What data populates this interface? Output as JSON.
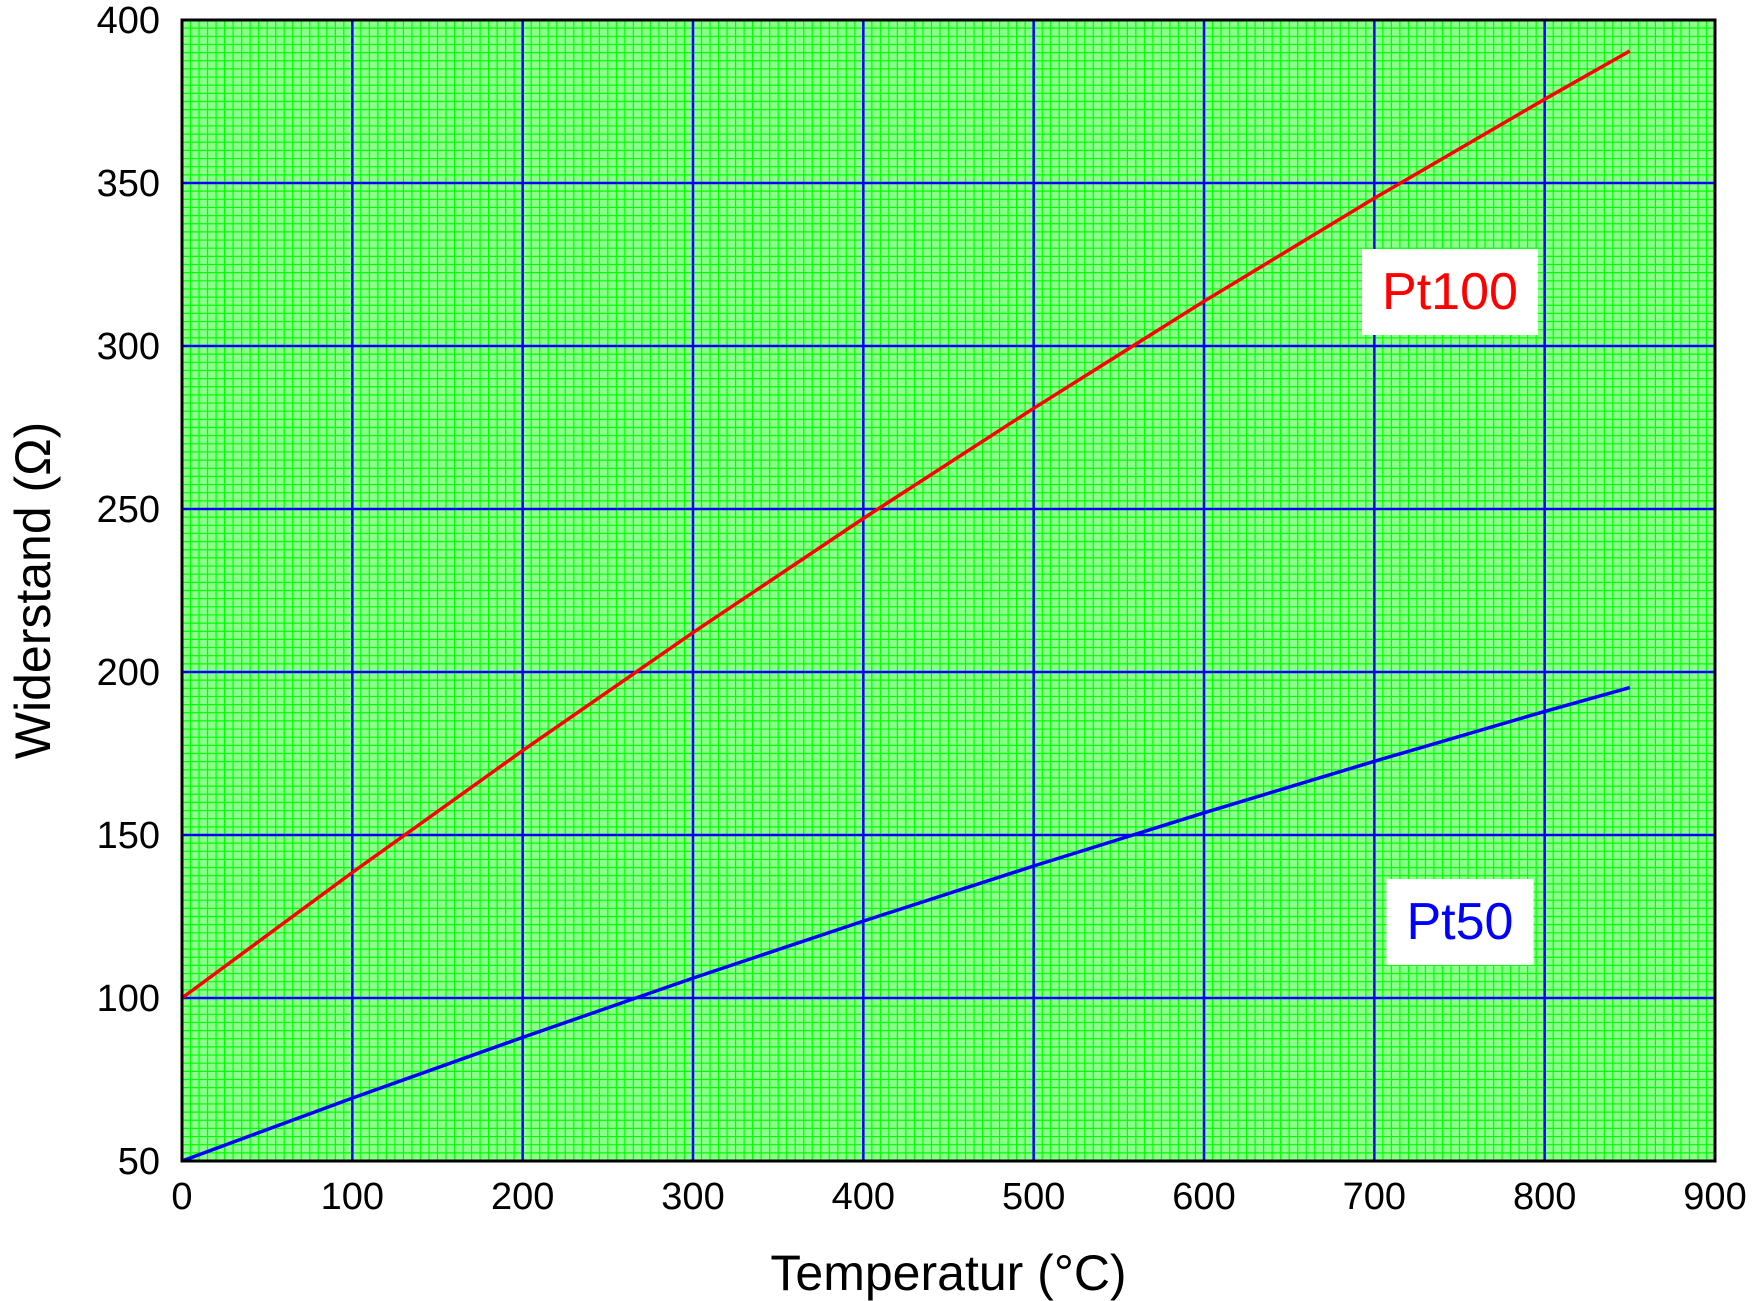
{
  "chart_data": {
    "type": "line",
    "title": "",
    "xlabel": "Temperatur (°C)",
    "ylabel": "Widerstand (Ω)",
    "xlim": [
      0,
      900
    ],
    "ylim": [
      50,
      400
    ],
    "x_ticks": [
      "0",
      "100",
      "200",
      "300",
      "400",
      "500",
      "600",
      "700",
      "800",
      "900"
    ],
    "y_ticks": [
      "50",
      "100",
      "150",
      "200",
      "250",
      "300",
      "350",
      "400"
    ],
    "grid": {
      "major": true,
      "minor": true,
      "major_color": "#0000ff",
      "minor_color": "#00ff00",
      "background": "#00ff00"
    },
    "series": [
      {
        "name": "Pt100",
        "color": "#ff0000",
        "x": [
          0,
          100,
          200,
          300,
          400,
          500,
          600,
          700,
          800,
          850
        ],
        "y": [
          100,
          138.5,
          175.9,
          212.1,
          247.1,
          280.9,
          313.7,
          345.3,
          375.7,
          390.5
        ]
      },
      {
        "name": "Pt50",
        "color": "#0000ff",
        "x": [
          0,
          100,
          200,
          300,
          400,
          500,
          600,
          700,
          800,
          850
        ],
        "y": [
          50,
          69.3,
          87.9,
          106.1,
          123.6,
          140.5,
          156.8,
          172.6,
          187.9,
          195.2
        ]
      }
    ]
  }
}
